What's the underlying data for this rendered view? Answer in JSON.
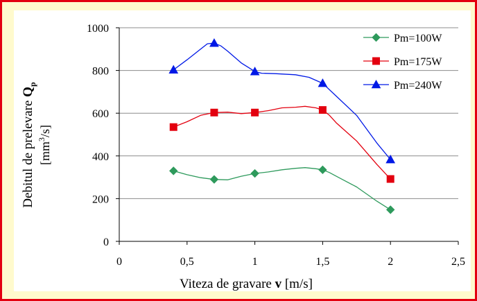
{
  "chart_data": {
    "type": "line",
    "xlabel": {
      "prefix": "Viteza de gravare ",
      "bold": "v",
      "suffix": " [m/s]"
    },
    "ylabel": {
      "line1_prefix": "Debitul de prelevare ",
      "line1_bold": "Q",
      "line1_sub": "p",
      "line2_a": "[mm",
      "line2_sup": "3",
      "line2_b": "/s]"
    },
    "xlim": [
      0,
      2.5
    ],
    "ylim": [
      0,
      1000
    ],
    "x_ticks": [
      0,
      0.5,
      1,
      1.5,
      2,
      2.5
    ],
    "x_tick_labels": [
      "0",
      "0,5",
      "1",
      "1,5",
      "2",
      "2,5"
    ],
    "y_ticks": [
      0,
      200,
      400,
      600,
      800,
      1000
    ],
    "y_tick_labels": [
      "0",
      "200",
      "400",
      "600",
      "800",
      "1000"
    ],
    "grid": "horizontal",
    "legend_position": "top-right",
    "series": [
      {
        "name": "Pm=100W",
        "color": "#2e9a5c",
        "marker": "diamond",
        "x": [
          0.4,
          0.7,
          1.0,
          1.5,
          2.0
        ],
        "y": [
          330,
          290,
          318,
          335,
          148
        ],
        "curve_x": [
          0.4,
          0.5,
          0.6,
          0.7,
          0.8,
          0.9,
          1.0,
          1.1,
          1.2,
          1.3,
          1.37,
          1.45,
          1.5,
          1.55,
          1.6,
          1.75,
          1.9,
          2.0
        ],
        "curve_y": [
          330,
          312,
          298,
          290,
          288,
          305,
          318,
          325,
          335,
          342,
          345,
          340,
          335,
          322,
          305,
          255,
          188,
          148
        ]
      },
      {
        "name": "Pm=175W",
        "color": "#e3000f",
        "marker": "square",
        "x": [
          0.4,
          0.7,
          1.0,
          1.5,
          2.0
        ],
        "y": [
          535,
          603,
          603,
          615,
          292
        ],
        "curve_x": [
          0.4,
          0.5,
          0.6,
          0.7,
          0.8,
          0.9,
          1.0,
          1.1,
          1.2,
          1.3,
          1.37,
          1.45,
          1.5,
          1.55,
          1.6,
          1.75,
          1.9,
          2.0
        ],
        "curve_y": [
          535,
          560,
          590,
          603,
          605,
          598,
          603,
          612,
          625,
          628,
          632,
          625,
          615,
          590,
          555,
          470,
          360,
          292
        ]
      },
      {
        "name": "Pm=240W",
        "color": "#0019e6",
        "marker": "triangle",
        "x": [
          0.4,
          0.7,
          1.0,
          1.5,
          2.0
        ],
        "y": [
          803,
          928,
          795,
          740,
          383
        ],
        "curve_x": [
          0.4,
          0.5,
          0.6,
          0.65,
          0.7,
          0.75,
          0.8,
          0.9,
          1.0,
          1.05,
          1.15,
          1.3,
          1.4,
          1.5,
          1.6,
          1.75,
          1.9,
          2.0
        ],
        "curve_y": [
          803,
          850,
          900,
          925,
          928,
          915,
          890,
          835,
          795,
          787,
          785,
          780,
          768,
          740,
          680,
          590,
          460,
          383
        ]
      }
    ]
  }
}
